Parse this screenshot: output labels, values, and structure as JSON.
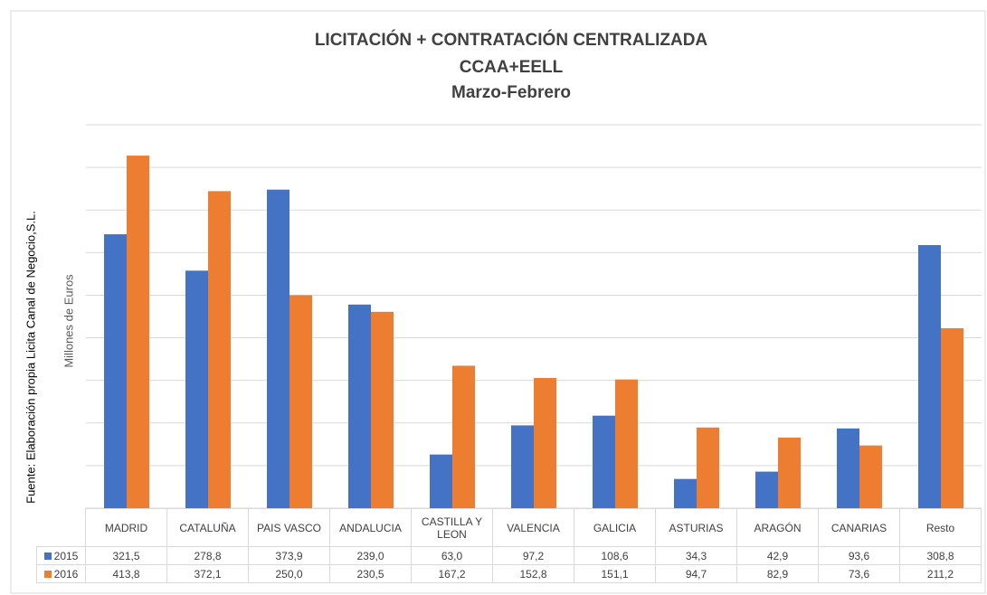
{
  "chart_data": {
    "type": "bar",
    "title": [
      "LICITACIÓN + CONTRATACIÓN CENTRALIZADA",
      "CCAA+EELL",
      "Marzo-Febrero"
    ],
    "y_label": "Millones de Euros",
    "source": "Fuente: Elaboración propia Licita Canal de Negocio,S.L.",
    "categories": [
      "MADRID",
      "CATALUÑA",
      "PAIS VASCO",
      "ANDALUCIA",
      "CASTILLA Y LEON",
      "VALENCIA",
      "GALICIA",
      "ASTURIAS",
      "ARAGÓN",
      "CANARIAS",
      "Resto"
    ],
    "series": [
      {
        "name": "2015",
        "color": "#4472c4",
        "values": [
          321.5,
          278.8,
          373.9,
          239.0,
          63.0,
          97.2,
          108.6,
          34.3,
          42.9,
          93.6,
          308.8
        ],
        "value_labels": [
          "321,5",
          "278,8",
          "373,9",
          "239,0",
          "63,0",
          "97,2",
          "108,6",
          "34,3",
          "42,9",
          "93,6",
          "308,8"
        ]
      },
      {
        "name": "2016",
        "color": "#ed7d31",
        "values": [
          413.8,
          372.1,
          250.0,
          230.5,
          167.2,
          152.8,
          151.1,
          94.7,
          82.9,
          73.6,
          211.2
        ],
        "value_labels": [
          "413,8",
          "372,1",
          "250,0",
          "230,5",
          "167,2",
          "152,8",
          "151,1",
          "94,7",
          "82,9",
          "73,6",
          "211,2"
        ]
      }
    ],
    "ylim": [
      0,
      450
    ],
    "yticks": [
      0,
      50,
      100,
      150,
      200,
      250,
      300,
      350,
      400,
      450
    ],
    "grid": true
  }
}
